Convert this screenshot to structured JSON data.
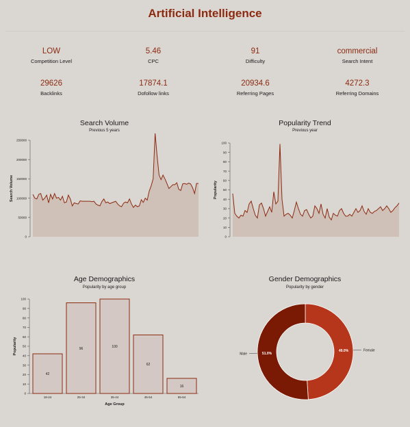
{
  "page": {
    "title": "Artificial Intelligence"
  },
  "metrics": [
    {
      "value": "LOW",
      "label": "Competition Level"
    },
    {
      "value": "5.46",
      "label": "CPC"
    },
    {
      "value": "91",
      "label": "Difficulty"
    },
    {
      "value": "commercial",
      "label": "Search Intent"
    },
    {
      "value": "29626",
      "label": "Backlinks"
    },
    {
      "value": "17874.1",
      "label": "Dofollow links"
    },
    {
      "value": "20934.6",
      "label": "Referring Pages"
    },
    {
      "value": "4272.3",
      "label": "Referring Domains"
    }
  ],
  "colors": {
    "accent": "#8c2a10",
    "area_fill": "#cfc0b8",
    "bar_fill": "#d3c8c3",
    "male": "#7a1a05",
    "female": "#b5361b",
    "background": "#dad6d2"
  },
  "chart_data": [
    {
      "type": "area",
      "title": "Search Volume",
      "subtitle": "Previous 5 years",
      "ylabel": "Search Volume",
      "xlabel": "",
      "ylim": [
        0,
        250000
      ],
      "yticks": [
        0,
        50000,
        100000,
        150000,
        200000,
        250000
      ],
      "values": [
        110000,
        100000,
        98000,
        110000,
        112000,
        95000,
        100000,
        108000,
        88000,
        110000,
        98000,
        112000,
        100000,
        102000,
        95000,
        105000,
        88000,
        90000,
        108000,
        98000,
        80000,
        88000,
        86000,
        85000,
        93000,
        92000,
        92000,
        92000,
        92000,
        92000,
        91000,
        92000,
        85000,
        82000,
        80000,
        91000,
        98000,
        88000,
        90000,
        86000,
        88000,
        90000,
        92000,
        85000,
        80000,
        78000,
        87000,
        90000,
        88000,
        98000,
        85000,
        76000,
        82000,
        78000,
        80000,
        96000,
        89000,
        100000,
        95000,
        118000,
        132000,
        150000,
        268000,
        210000,
        160000,
        148000,
        160000,
        150000,
        138000,
        125000,
        130000,
        135000,
        135000,
        140000,
        123000,
        120000,
        137000,
        138000,
        136000,
        139000,
        137000,
        127000,
        112000,
        138000,
        138000
      ],
      "grid": false,
      "legend": "none"
    },
    {
      "type": "area",
      "title": "Popularity Trend",
      "subtitle": "Previous year",
      "ylabel": "Popularity",
      "xlabel": "",
      "ylim": [
        0,
        100
      ],
      "yticks": [
        0,
        10,
        20,
        30,
        40,
        50,
        60,
        70,
        80,
        90,
        100
      ],
      "values": [
        46,
        25,
        22,
        20,
        23,
        22,
        28,
        26,
        35,
        38,
        30,
        23,
        20,
        34,
        36,
        30,
        22,
        27,
        32,
        26,
        48,
        35,
        38,
        99,
        40,
        22,
        24,
        25,
        23,
        20,
        28,
        37,
        30,
        24,
        22,
        28,
        29,
        24,
        20,
        22,
        33,
        30,
        25,
        35,
        24,
        20,
        30,
        21,
        18,
        25,
        23,
        22,
        28,
        30,
        25,
        22,
        22,
        24,
        22,
        26,
        30,
        26,
        28,
        33,
        27,
        24,
        30,
        26,
        25,
        27,
        28,
        30,
        32,
        28,
        30,
        33,
        30,
        26,
        28,
        31,
        33,
        36
      ],
      "grid": false,
      "legend": "none"
    },
    {
      "type": "bar",
      "title": "Age Demographics",
      "subtitle": "Popularity by age group",
      "xlabel": "Age Group",
      "ylabel": "Popularity",
      "categories": [
        "18-24",
        "25-34",
        "35-44",
        "45-54",
        "55-64"
      ],
      "values": [
        42,
        96,
        100,
        62,
        16
      ],
      "ylim": [
        0,
        100
      ],
      "yticks": [
        0,
        10,
        20,
        30,
        40,
        50,
        60,
        70,
        80,
        90,
        100
      ],
      "grid": false,
      "legend": "none"
    },
    {
      "type": "pie",
      "title": "Gender Demographics",
      "subtitle": "Popularity by gender",
      "categories": [
        "Male",
        "Female"
      ],
      "values": [
        51.0,
        49.0
      ],
      "value_labels": [
        "51.0%",
        "49.0%"
      ],
      "donut": true,
      "legend": "none"
    }
  ]
}
